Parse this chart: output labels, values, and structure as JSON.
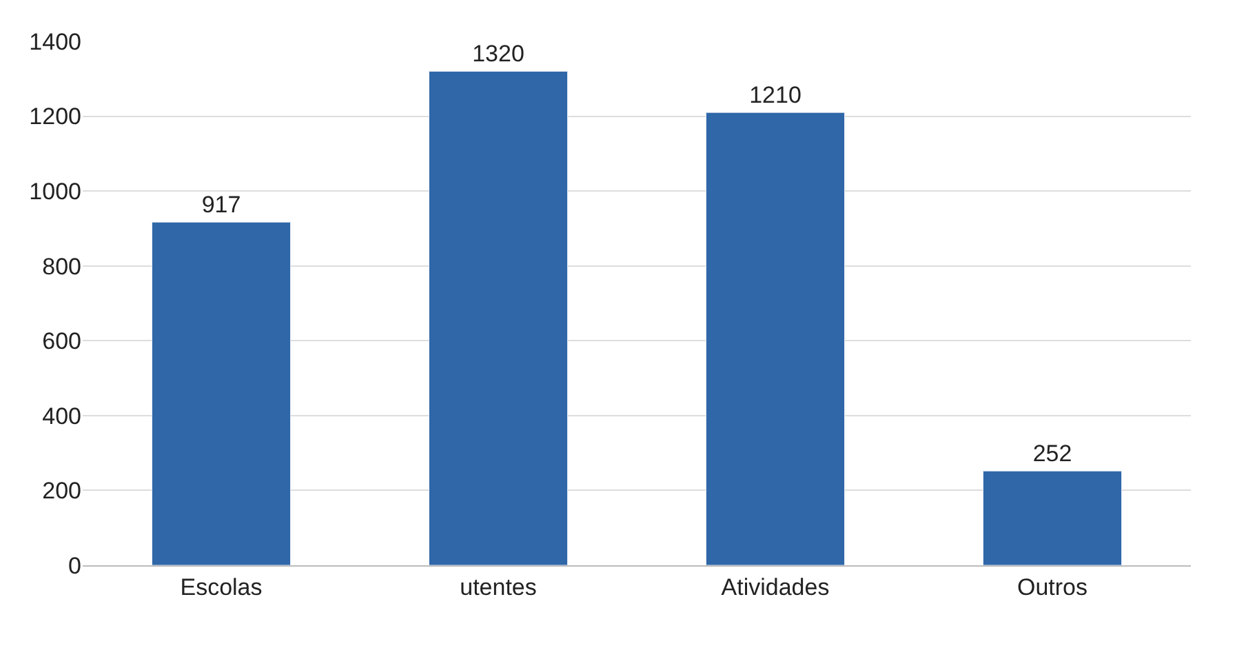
{
  "chart_data": {
    "type": "bar",
    "categories": [
      "Escolas",
      "utentes",
      "Atividades",
      "Outros"
    ],
    "values": [
      917,
      1320,
      1210,
      252
    ],
    "color": "#2f67a8",
    "ylim": [
      0,
      1400
    ],
    "yticks": [
      0,
      200,
      400,
      600,
      800,
      1000,
      1200,
      1400
    ],
    "grid": "y",
    "data_labels": true
  }
}
